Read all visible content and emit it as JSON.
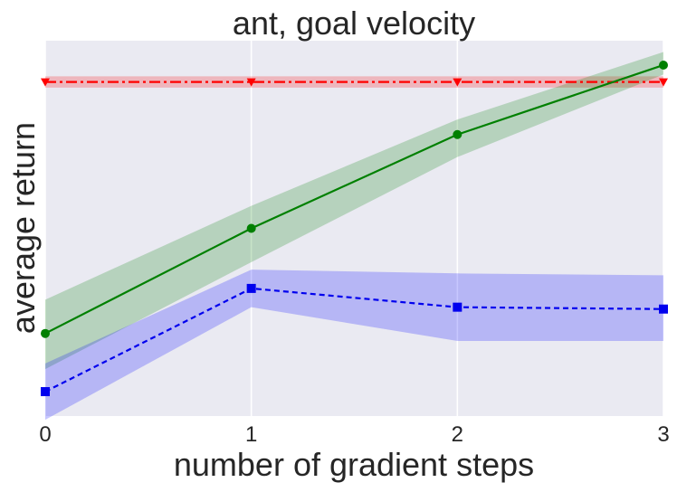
{
  "chart_data": {
    "type": "line",
    "title": "ant, goal velocity",
    "xlabel": "number of gradient steps",
    "ylabel": "average return",
    "x": [
      0,
      1,
      2,
      3
    ],
    "xlim": [
      0,
      3
    ],
    "ylim": [
      -100,
      100
    ],
    "x_ticks": [
      "0",
      "1",
      "2",
      "3"
    ],
    "y_ticks_visible": false,
    "grid": true,
    "series": [
      {
        "color": "#ff0000",
        "band_color": "#ff0000",
        "linestyle": "dashdot",
        "marker": "triangle-down",
        "values": [
          78,
          78,
          78,
          78
        ],
        "lower": [
          75,
          75,
          75,
          75
        ],
        "upper": [
          81,
          81,
          81,
          81
        ]
      },
      {
        "color": "#008000",
        "band_color": "#008000",
        "linestyle": "solid",
        "marker": "circle",
        "values": [
          -56,
          0,
          50,
          87
        ],
        "lower": [
          -75,
          -18,
          38,
          82
        ],
        "upper": [
          -38,
          12,
          58,
          94
        ]
      },
      {
        "color": "#0000ee",
        "band_color": "#0000ff",
        "linestyle": "dashed",
        "marker": "square",
        "values": [
          -87,
          -32,
          -42,
          -43
        ],
        "lower": [
          -102,
          -42,
          -60,
          -60
        ],
        "upper": [
          -72,
          -22,
          -24,
          -25
        ]
      }
    ]
  }
}
